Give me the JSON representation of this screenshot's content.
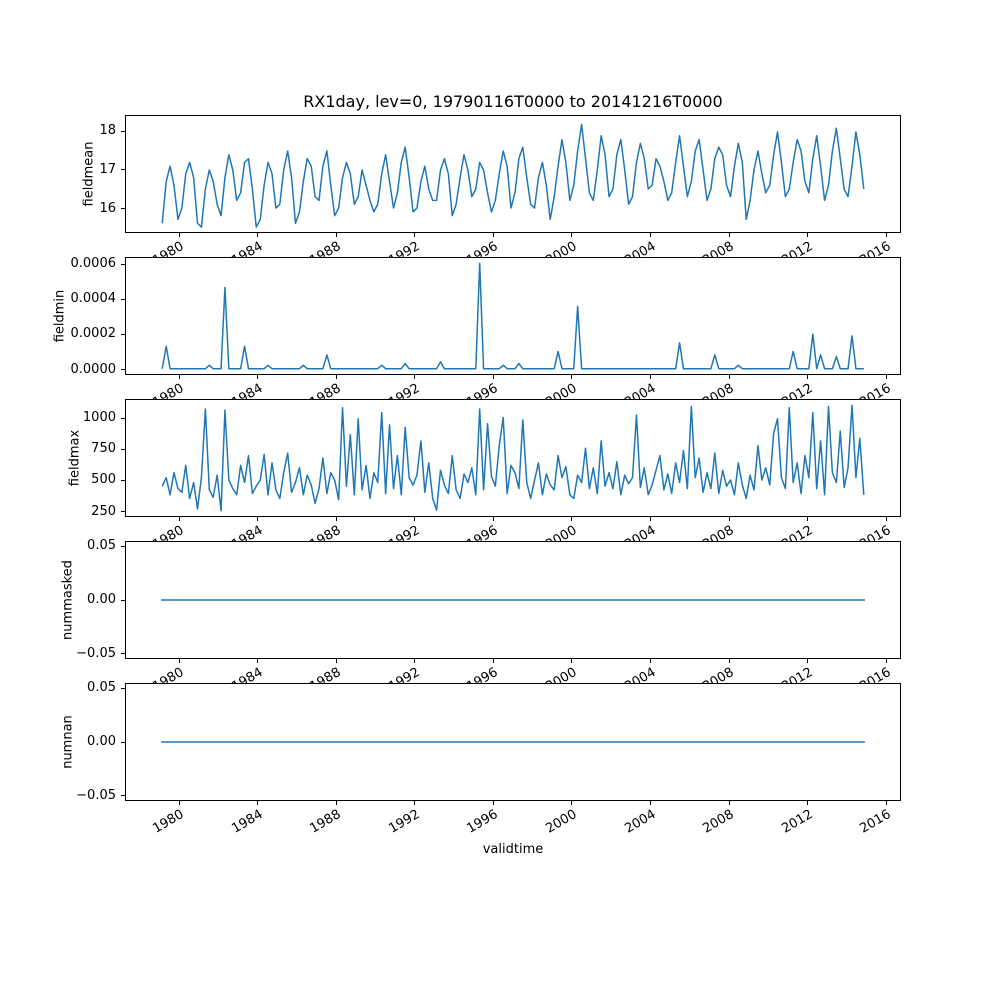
{
  "title": "RX1day, lev=0, 19790116T0000 to 20141216T0000",
  "line_color": "#1f77b4",
  "x_axis": {
    "label": "validtime",
    "tick_values": [
      1980,
      1984,
      1988,
      1992,
      1996,
      2000,
      2004,
      2008,
      2012,
      2016
    ],
    "tick_labels": [
      "1980",
      "1984",
      "1988",
      "1992",
      "1996",
      "2000",
      "2004",
      "2008",
      "2012",
      "2016"
    ],
    "xlim": [
      1977.25,
      2016.75
    ]
  },
  "chart_data": [
    {
      "type": "line",
      "name": "fieldmean",
      "ylabel": "fieldmean",
      "ylim": [
        15.37,
        18.42
      ],
      "ytick_values": [
        16,
        17,
        18
      ],
      "ytick_labels": [
        "16",
        "17",
        "18"
      ],
      "x_start": 1979.1,
      "x_step": 0.2,
      "values": [
        15.6,
        16.7,
        17.1,
        16.6,
        15.7,
        16.0,
        16.9,
        17.2,
        16.8,
        15.6,
        15.5,
        16.5,
        17.0,
        16.7,
        16.1,
        15.8,
        16.8,
        17.4,
        17.0,
        16.2,
        16.4,
        17.2,
        17.3,
        16.5,
        15.5,
        15.7,
        16.6,
        17.2,
        16.9,
        16.0,
        16.1,
        17.0,
        17.5,
        16.8,
        15.6,
        15.9,
        16.7,
        17.3,
        17.1,
        16.3,
        16.2,
        17.1,
        17.5,
        16.6,
        15.8,
        16.0,
        16.8,
        17.2,
        16.9,
        16.1,
        16.3,
        17.0,
        16.6,
        16.2,
        15.9,
        16.1,
        16.9,
        17.4,
        16.7,
        16.0,
        16.4,
        17.2,
        17.6,
        16.8,
        15.9,
        16.0,
        16.7,
        17.1,
        16.5,
        16.2,
        16.2,
        17.0,
        17.3,
        16.9,
        15.8,
        16.1,
        16.8,
        17.4,
        17.0,
        16.3,
        16.5,
        17.2,
        17.0,
        16.4,
        15.9,
        16.2,
        16.9,
        17.5,
        17.1,
        16.0,
        16.4,
        17.3,
        17.6,
        16.8,
        16.1,
        16.0,
        16.8,
        17.2,
        16.6,
        15.7,
        16.3,
        17.1,
        17.8,
        17.2,
        16.2,
        16.6,
        17.5,
        18.2,
        17.3,
        16.4,
        16.2,
        17.0,
        17.9,
        17.4,
        16.3,
        16.5,
        17.4,
        17.8,
        17.0,
        16.1,
        16.3,
        17.2,
        17.7,
        17.3,
        16.5,
        16.6,
        17.3,
        17.1,
        16.7,
        16.2,
        16.4,
        17.2,
        17.9,
        17.1,
        16.3,
        16.7,
        17.5,
        17.8,
        17.0,
        16.2,
        16.5,
        17.3,
        17.6,
        17.4,
        16.6,
        16.3,
        17.1,
        17.7,
        17.2,
        15.7,
        16.2,
        17.0,
        17.5,
        16.9,
        16.4,
        16.6,
        17.4,
        18.0,
        17.2,
        16.3,
        16.5,
        17.2,
        17.8,
        17.5,
        16.7,
        16.4,
        17.3,
        17.9,
        17.1,
        16.2,
        16.6,
        17.5,
        18.1,
        17.3,
        16.5,
        16.3,
        17.1,
        18.0,
        17.4,
        16.5
      ]
    },
    {
      "type": "line",
      "name": "fieldmin",
      "ylabel": "fieldmin",
      "ylim": [
        -3.05e-05,
        0.0006405
      ],
      "ytick_values": [
        0.0,
        0.0002,
        0.0004,
        0.0006
      ],
      "ytick_labels": [
        "0.0000",
        "0.0002",
        "0.0004",
        "0.0006"
      ],
      "x_start": 1979.1,
      "x_step": 0.2,
      "values": [
        0,
        0.00013,
        0,
        0,
        0,
        0,
        0,
        0,
        0,
        0,
        0,
        0,
        2e-05,
        0,
        0,
        0,
        0.00047,
        0,
        0,
        0,
        0,
        0.00013,
        0,
        0,
        0,
        0,
        0,
        2e-05,
        0,
        0,
        0,
        0,
        0,
        0,
        0,
        0,
        2e-05,
        0,
        0,
        0,
        0,
        0,
        8e-05,
        0,
        0,
        0,
        0,
        0,
        0,
        0,
        0,
        0,
        0,
        0,
        0,
        0,
        2e-05,
        0,
        0,
        0,
        0,
        0,
        3e-05,
        0,
        0,
        0,
        0,
        0,
        0,
        0,
        0,
        4e-05,
        0,
        0,
        0,
        0,
        0,
        0,
        0,
        0,
        0,
        0.00061,
        0,
        0,
        0,
        0,
        0,
        2e-05,
        0,
        0,
        0,
        3e-05,
        0,
        0,
        0,
        0,
        0,
        0,
        0,
        0,
        0,
        0.0001,
        0,
        0,
        0,
        0,
        0.00036,
        0,
        0,
        0,
        0,
        0,
        0,
        0,
        0,
        0,
        0,
        0,
        0,
        0,
        0,
        0,
        0,
        0,
        0,
        0,
        0,
        0,
        0,
        0,
        0,
        0,
        0.00015,
        0,
        0,
        0,
        0,
        0,
        0,
        0,
        0,
        8e-05,
        0,
        0,
        0,
        0,
        0,
        2e-05,
        0,
        0,
        0,
        0,
        0,
        0,
        0,
        0,
        0,
        0,
        0,
        0,
        0,
        0.0001,
        0,
        0,
        0,
        0,
        0.0002,
        0,
        8e-05,
        0,
        0,
        0,
        7e-05,
        0,
        0,
        0,
        0.00019,
        0,
        0,
        0
      ]
    },
    {
      "type": "line",
      "name": "fieldmax",
      "ylabel": "fieldmax",
      "ylim": [
        207,
        1153
      ],
      "ytick_values": [
        250,
        500,
        750,
        1000
      ],
      "ytick_labels": [
        "250",
        "500",
        "750",
        "1000"
      ],
      "x_start": 1979.1,
      "x_step": 0.2,
      "values": [
        450,
        520,
        380,
        560,
        430,
        400,
        620,
        350,
        480,
        265,
        520,
        1080,
        420,
        360,
        540,
        250,
        1070,
        500,
        430,
        380,
        620,
        480,
        700,
        390,
        450,
        500,
        710,
        380,
        640,
        420,
        350,
        560,
        720,
        400,
        480,
        600,
        380,
        540,
        460,
        310,
        430,
        680,
        390,
        560,
        500,
        340,
        1090,
        450,
        870,
        380,
        1000,
        420,
        620,
        350,
        560,
        480,
        1050,
        390,
        950,
        430,
        700,
        380,
        930,
        520,
        460,
        540,
        820,
        400,
        640,
        350,
        255,
        580,
        460,
        390,
        700,
        420,
        350,
        550,
        480,
        600,
        380,
        1080,
        420,
        960,
        530,
        450,
        780,
        1010,
        390,
        620,
        560,
        430,
        990,
        480,
        350,
        500,
        640,
        380,
        550,
        460,
        420,
        700,
        520,
        610,
        380,
        350,
        540,
        480,
        760,
        430,
        600,
        390,
        820,
        450,
        560,
        430,
        650,
        380,
        540,
        470,
        520,
        1030,
        440,
        600,
        380,
        460,
        580,
        700,
        420,
        550,
        390,
        640,
        480,
        740,
        430,
        1100,
        520,
        680,
        400,
        560,
        430,
        720,
        390,
        580,
        450,
        500,
        380,
        640,
        460,
        350,
        540,
        420,
        780,
        500,
        600,
        460,
        880,
        1000,
        520,
        430,
        1090,
        480,
        640,
        390,
        700,
        520,
        1050,
        430,
        820,
        380,
        1100,
        560,
        480,
        900,
        440,
        600,
        1110,
        520,
        840,
        380
      ]
    },
    {
      "type": "line",
      "name": "nummasked",
      "ylabel": "nummasked",
      "ylim": [
        -0.055,
        0.055
      ],
      "ytick_values": [
        -0.05,
        0.0,
        0.05
      ],
      "ytick_labels": [
        "−0.05",
        "0.00",
        "0.05"
      ],
      "constant": 0,
      "x_range": [
        1979.04,
        2014.96
      ]
    },
    {
      "type": "line",
      "name": "numnan",
      "ylabel": "numnan",
      "ylim": [
        -0.055,
        0.055
      ],
      "ytick_values": [
        -0.05,
        0.0,
        0.05
      ],
      "ytick_labels": [
        "−0.05",
        "0.00",
        "0.05"
      ],
      "constant": 0,
      "x_range": [
        1979.04,
        2014.96
      ]
    }
  ]
}
